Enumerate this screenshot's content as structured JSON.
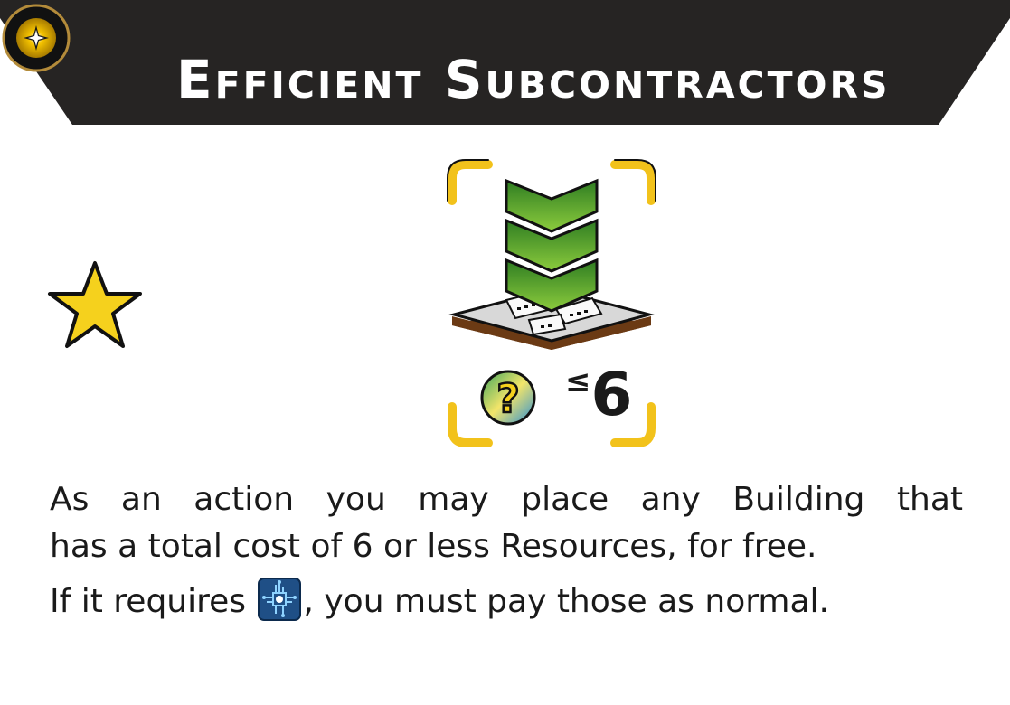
{
  "card": {
    "title": "Efficient Subcontractors",
    "icons": {
      "emblem": "golden-sun-emblem-icon",
      "star": "star-icon",
      "building": "green-chevron-building-tile-icon",
      "any_resource": "question-mark-resource-icon",
      "technology": "circuit-chip-icon"
    },
    "cost_limit": {
      "symbol": "≤",
      "value": "6"
    },
    "description": {
      "line1": "As an action you may place any Building that",
      "line2": "has a total cost of 6 or less Resources, for free.",
      "line3_before": "If it requires ",
      "line3_after": ", you must pay those as normal."
    },
    "colors": {
      "banner": "#262423",
      "star": "#f5d11d",
      "frame": "#f2c21b",
      "chevron": "#4f9e2a"
    }
  }
}
